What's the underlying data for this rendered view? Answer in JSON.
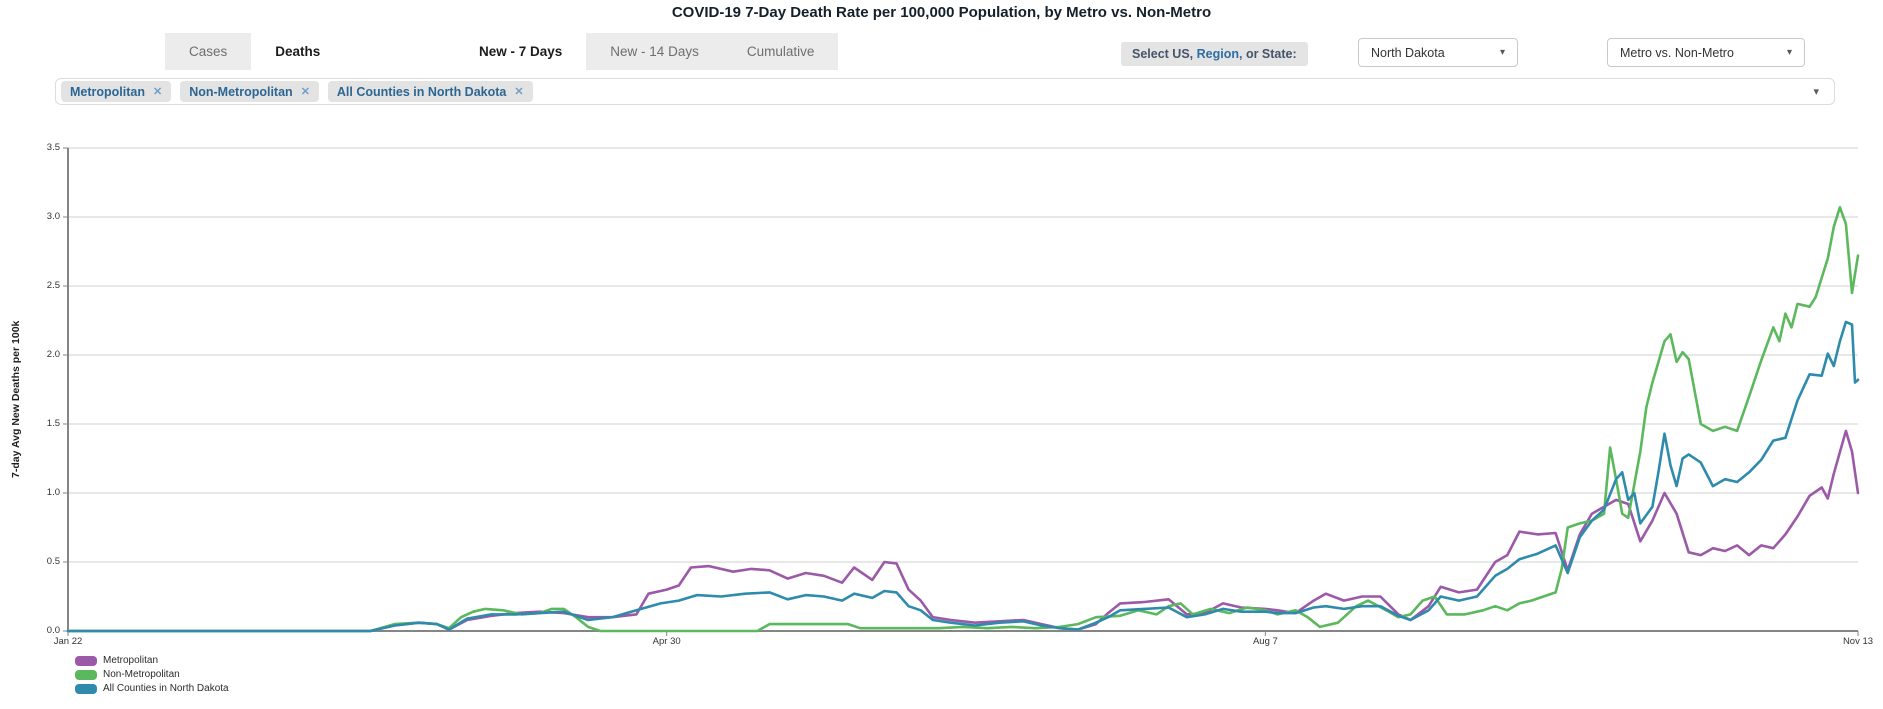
{
  "page": {
    "title": "COVID-19 7-Day Death Rate per 100,000 Population, by Metro vs. Non-Metro"
  },
  "icons": {
    "caret_glyph": "▾",
    "close_glyph": "✕"
  },
  "metric_tabs": [
    {
      "label": "Cases",
      "active": false
    },
    {
      "label": "Deaths",
      "active": true
    }
  ],
  "period_tabs": [
    {
      "label": "New - 7 Days",
      "active": true
    },
    {
      "label": "New - 14 Days",
      "active": false
    },
    {
      "label": "Cumulative",
      "active": false
    }
  ],
  "selector": {
    "parts": [
      "Select US,",
      "Region,",
      "or State:"
    ]
  },
  "dropdowns": [
    {
      "value": "North Dakota"
    },
    {
      "value": "Metro vs. Non-Metro"
    }
  ],
  "filter_chips": [
    "Metropolitan",
    "Non-Metropolitan",
    "All Counties in North Dakota"
  ],
  "chart_data": {
    "type": "line",
    "title": "COVID-19 7-Day Death Rate per 100,000 Population, by Metro vs. Non-Metro",
    "xlabel": "",
    "ylabel": "7-day Avg New Deaths per 100k",
    "ylim": [
      0,
      3.5
    ],
    "yticks": [
      0.0,
      0.5,
      1.0,
      1.5,
      2.0,
      2.5,
      3.0,
      3.5
    ],
    "grid": true,
    "legend_position": "bottom-left",
    "x_domain_days": [
      0,
      296
    ],
    "xticks": [
      {
        "day": 0,
        "label": "Jan 22"
      },
      {
        "day": 99,
        "label": "Apr 30"
      },
      {
        "day": 198,
        "label": "Aug 7"
      },
      {
        "day": 296,
        "label": "Nov 13"
      }
    ],
    "series": [
      {
        "name": "Metropolitan",
        "color": "#9b59a8",
        "points": [
          [
            0,
            0
          ],
          [
            25,
            0
          ],
          [
            50,
            0
          ],
          [
            54,
            0.04
          ],
          [
            58,
            0.06
          ],
          [
            61,
            0.05
          ],
          [
            63,
            0.01
          ],
          [
            66,
            0.08
          ],
          [
            70,
            0.11
          ],
          [
            74,
            0.13
          ],
          [
            78,
            0.14
          ],
          [
            82,
            0.13
          ],
          [
            86,
            0.1
          ],
          [
            90,
            0.1
          ],
          [
            94,
            0.12
          ],
          [
            96,
            0.27
          ],
          [
            99,
            0.3
          ],
          [
            101,
            0.33
          ],
          [
            103,
            0.46
          ],
          [
            106,
            0.47
          ],
          [
            110,
            0.43
          ],
          [
            113,
            0.45
          ],
          [
            116,
            0.44
          ],
          [
            119,
            0.38
          ],
          [
            122,
            0.42
          ],
          [
            125,
            0.4
          ],
          [
            128,
            0.35
          ],
          [
            130,
            0.46
          ],
          [
            133,
            0.37
          ],
          [
            135,
            0.5
          ],
          [
            137,
            0.49
          ],
          [
            139,
            0.3
          ],
          [
            141,
            0.22
          ],
          [
            143,
            0.1
          ],
          [
            146,
            0.08
          ],
          [
            150,
            0.06
          ],
          [
            154,
            0.07
          ],
          [
            158,
            0.08
          ],
          [
            161,
            0.05
          ],
          [
            164,
            0.02
          ],
          [
            167,
            0.01
          ],
          [
            170,
            0.05
          ],
          [
            172,
            0.13
          ],
          [
            174,
            0.2
          ],
          [
            178,
            0.21
          ],
          [
            182,
            0.23
          ],
          [
            185,
            0.12
          ],
          [
            188,
            0.13
          ],
          [
            191,
            0.2
          ],
          [
            194,
            0.17
          ],
          [
            198,
            0.16
          ],
          [
            200,
            0.15
          ],
          [
            203,
            0.13
          ],
          [
            206,
            0.22
          ],
          [
            208,
            0.27
          ],
          [
            211,
            0.22
          ],
          [
            214,
            0.25
          ],
          [
            217,
            0.25
          ],
          [
            220,
            0.12
          ],
          [
            222,
            0.08
          ],
          [
            225,
            0.18
          ],
          [
            227,
            0.32
          ],
          [
            230,
            0.28
          ],
          [
            233,
            0.3
          ],
          [
            236,
            0.5
          ],
          [
            238,
            0.55
          ],
          [
            240,
            0.72
          ],
          [
            243,
            0.7
          ],
          [
            246,
            0.71
          ],
          [
            248,
            0.44
          ],
          [
            250,
            0.7
          ],
          [
            252,
            0.85
          ],
          [
            254,
            0.9
          ],
          [
            256,
            0.95
          ],
          [
            258,
            0.92
          ],
          [
            260,
            0.65
          ],
          [
            262,
            0.8
          ],
          [
            264,
            1.0
          ],
          [
            266,
            0.85
          ],
          [
            268,
            0.57
          ],
          [
            270,
            0.55
          ],
          [
            272,
            0.6
          ],
          [
            274,
            0.58
          ],
          [
            276,
            0.62
          ],
          [
            278,
            0.55
          ],
          [
            280,
            0.62
          ],
          [
            282,
            0.6
          ],
          [
            284,
            0.7
          ],
          [
            286,
            0.83
          ],
          [
            288,
            0.98
          ],
          [
            290,
            1.04
          ],
          [
            291,
            0.96
          ],
          [
            292,
            1.14
          ],
          [
            294,
            1.45
          ],
          [
            295,
            1.3
          ],
          [
            296,
            1.0
          ]
        ]
      },
      {
        "name": "Non-Metropolitan",
        "color": "#5cb85c",
        "points": [
          [
            0,
            0
          ],
          [
            25,
            0
          ],
          [
            50,
            0
          ],
          [
            54,
            0.05
          ],
          [
            58,
            0.06
          ],
          [
            61,
            0.05
          ],
          [
            63,
            0.02
          ],
          [
            65,
            0.1
          ],
          [
            67,
            0.14
          ],
          [
            69,
            0.16
          ],
          [
            72,
            0.15
          ],
          [
            75,
            0.12
          ],
          [
            78,
            0.13
          ],
          [
            80,
            0.16
          ],
          [
            82,
            0.16
          ],
          [
            84,
            0.1
          ],
          [
            86,
            0.03
          ],
          [
            88,
            0
          ],
          [
            114,
            0
          ],
          [
            116,
            0.05
          ],
          [
            129,
            0.05
          ],
          [
            131,
            0.02
          ],
          [
            144,
            0.02
          ],
          [
            148,
            0.03
          ],
          [
            152,
            0.02
          ],
          [
            156,
            0.03
          ],
          [
            160,
            0.02
          ],
          [
            164,
            0.03
          ],
          [
            167,
            0.05
          ],
          [
            170,
            0.1
          ],
          [
            174,
            0.11
          ],
          [
            177,
            0.15
          ],
          [
            180,
            0.12
          ],
          [
            182,
            0.18
          ],
          [
            184,
            0.2
          ],
          [
            186,
            0.12
          ],
          [
            189,
            0.16
          ],
          [
            192,
            0.13
          ],
          [
            195,
            0.17
          ],
          [
            198,
            0.15
          ],
          [
            200,
            0.12
          ],
          [
            203,
            0.15
          ],
          [
            205,
            0.1
          ],
          [
            207,
            0.03
          ],
          [
            210,
            0.06
          ],
          [
            213,
            0.18
          ],
          [
            215,
            0.22
          ],
          [
            218,
            0.15
          ],
          [
            220,
            0.1
          ],
          [
            222,
            0.12
          ],
          [
            224,
            0.22
          ],
          [
            226,
            0.25
          ],
          [
            228,
            0.12
          ],
          [
            231,
            0.12
          ],
          [
            234,
            0.15
          ],
          [
            236,
            0.18
          ],
          [
            238,
            0.15
          ],
          [
            240,
            0.2
          ],
          [
            242,
            0.22
          ],
          [
            244,
            0.25
          ],
          [
            246,
            0.28
          ],
          [
            247,
            0.45
          ],
          [
            248,
            0.75
          ],
          [
            250,
            0.78
          ],
          [
            252,
            0.8
          ],
          [
            254,
            0.85
          ],
          [
            255,
            1.33
          ],
          [
            256,
            1.1
          ],
          [
            257,
            0.85
          ],
          [
            258,
            0.82
          ],
          [
            260,
            1.3
          ],
          [
            261,
            1.62
          ],
          [
            262,
            1.8
          ],
          [
            264,
            2.1
          ],
          [
            265,
            2.15
          ],
          [
            266,
            1.95
          ],
          [
            267,
            2.02
          ],
          [
            268,
            1.97
          ],
          [
            270,
            1.5
          ],
          [
            272,
            1.45
          ],
          [
            274,
            1.48
          ],
          [
            276,
            1.45
          ],
          [
            278,
            1.7
          ],
          [
            280,
            1.96
          ],
          [
            282,
            2.2
          ],
          [
            283,
            2.1
          ],
          [
            284,
            2.3
          ],
          [
            285,
            2.2
          ],
          [
            286,
            2.37
          ],
          [
            288,
            2.35
          ],
          [
            289,
            2.42
          ],
          [
            291,
            2.7
          ],
          [
            292,
            2.93
          ],
          [
            293,
            3.07
          ],
          [
            294,
            2.95
          ],
          [
            295,
            2.45
          ],
          [
            296,
            2.72
          ]
        ]
      },
      {
        "name": "All Counties in North Dakota",
        "color": "#2e8bab",
        "points": [
          [
            0,
            0
          ],
          [
            25,
            0
          ],
          [
            50,
            0
          ],
          [
            54,
            0.04
          ],
          [
            58,
            0.06
          ],
          [
            61,
            0.05
          ],
          [
            63,
            0.01
          ],
          [
            66,
            0.09
          ],
          [
            70,
            0.12
          ],
          [
            74,
            0.12
          ],
          [
            78,
            0.13
          ],
          [
            82,
            0.14
          ],
          [
            86,
            0.08
          ],
          [
            90,
            0.1
          ],
          [
            94,
            0.15
          ],
          [
            98,
            0.2
          ],
          [
            101,
            0.22
          ],
          [
            104,
            0.26
          ],
          [
            108,
            0.25
          ],
          [
            112,
            0.27
          ],
          [
            116,
            0.28
          ],
          [
            119,
            0.23
          ],
          [
            122,
            0.26
          ],
          [
            125,
            0.25
          ],
          [
            128,
            0.22
          ],
          [
            130,
            0.27
          ],
          [
            133,
            0.24
          ],
          [
            135,
            0.29
          ],
          [
            137,
            0.28
          ],
          [
            139,
            0.18
          ],
          [
            141,
            0.15
          ],
          [
            143,
            0.08
          ],
          [
            146,
            0.06
          ],
          [
            150,
            0.04
          ],
          [
            154,
            0.06
          ],
          [
            158,
            0.07
          ],
          [
            161,
            0.04
          ],
          [
            164,
            0.02
          ],
          [
            167,
            0.01
          ],
          [
            170,
            0.06
          ],
          [
            172,
            0.1
          ],
          [
            174,
            0.15
          ],
          [
            178,
            0.16
          ],
          [
            182,
            0.17
          ],
          [
            185,
            0.1
          ],
          [
            188,
            0.12
          ],
          [
            191,
            0.16
          ],
          [
            194,
            0.14
          ],
          [
            198,
            0.14
          ],
          [
            200,
            0.13
          ],
          [
            203,
            0.13
          ],
          [
            206,
            0.17
          ],
          [
            208,
            0.18
          ],
          [
            211,
            0.16
          ],
          [
            214,
            0.18
          ],
          [
            217,
            0.18
          ],
          [
            220,
            0.11
          ],
          [
            222,
            0.08
          ],
          [
            225,
            0.15
          ],
          [
            227,
            0.25
          ],
          [
            230,
            0.22
          ],
          [
            233,
            0.25
          ],
          [
            236,
            0.4
          ],
          [
            238,
            0.45
          ],
          [
            240,
            0.52
          ],
          [
            243,
            0.56
          ],
          [
            246,
            0.62
          ],
          [
            248,
            0.42
          ],
          [
            250,
            0.68
          ],
          [
            252,
            0.8
          ],
          [
            254,
            0.88
          ],
          [
            256,
            1.1
          ],
          [
            257,
            1.15
          ],
          [
            258,
            0.95
          ],
          [
            259,
            1.0
          ],
          [
            260,
            0.78
          ],
          [
            262,
            0.9
          ],
          [
            263,
            1.15
          ],
          [
            264,
            1.43
          ],
          [
            265,
            1.2
          ],
          [
            266,
            1.05
          ],
          [
            267,
            1.25
          ],
          [
            268,
            1.28
          ],
          [
            270,
            1.22
          ],
          [
            272,
            1.05
          ],
          [
            274,
            1.1
          ],
          [
            276,
            1.08
          ],
          [
            278,
            1.15
          ],
          [
            280,
            1.24
          ],
          [
            282,
            1.38
          ],
          [
            284,
            1.4
          ],
          [
            286,
            1.67
          ],
          [
            288,
            1.86
          ],
          [
            290,
            1.85
          ],
          [
            291,
            2.01
          ],
          [
            292,
            1.92
          ],
          [
            293,
            2.1
          ],
          [
            294,
            2.24
          ],
          [
            295,
            2.22
          ],
          [
            295.5,
            1.8
          ],
          [
            296,
            1.82
          ]
        ]
      }
    ]
  }
}
